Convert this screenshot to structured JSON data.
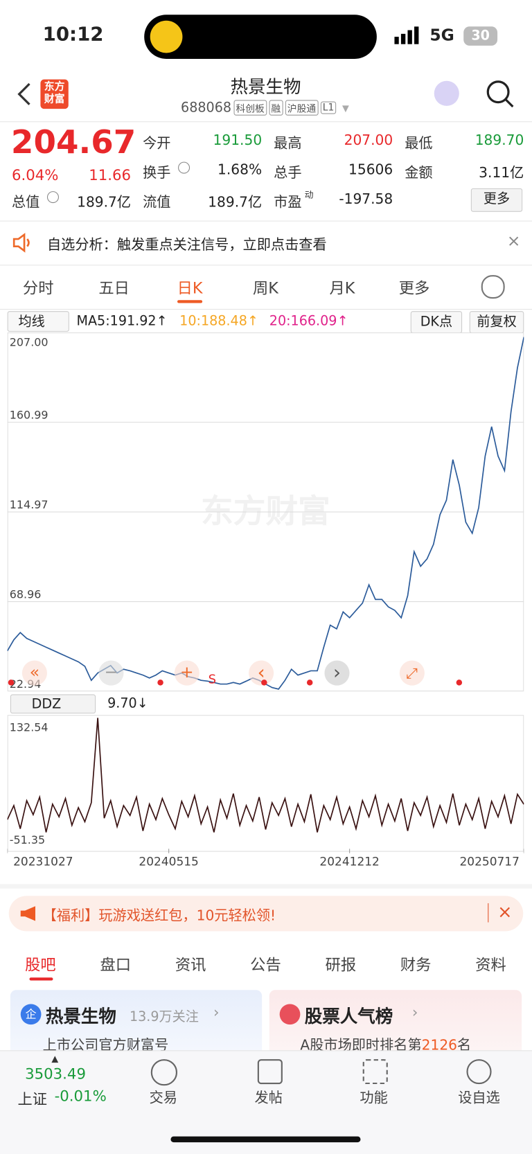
{
  "status": {
    "time": "10:12",
    "network": "5G",
    "battery": "30"
  },
  "header": {
    "logo": [
      "东方",
      "财富"
    ],
    "title": "热景生物",
    "code": "688068",
    "tags": [
      "科创板",
      "融",
      "沪股通",
      "L1"
    ]
  },
  "quote": {
    "price": "204.67",
    "change_pct": "6.04%",
    "change": "11.66",
    "open": {
      "label": "今开",
      "value": "191.50"
    },
    "high": {
      "label": "最高",
      "value": "207.00"
    },
    "low": {
      "label": "最低",
      "value": "189.70"
    },
    "turnover": {
      "label": "换手",
      "value": "1.68%"
    },
    "volume": {
      "label": "总手",
      "value": "15606"
    },
    "amount": {
      "label": "金额",
      "value": "3.11亿"
    },
    "market_cap": {
      "label": "总值",
      "value": "189.7亿"
    },
    "float_cap": {
      "label": "流值",
      "value": "189.7亿"
    },
    "pe": {
      "label": "市盈",
      "sup": "动",
      "value": "-197.58"
    },
    "more": "更多"
  },
  "notice": "自选分析：触发重点关注信号，立即点击查看",
  "period_tabs": [
    "分时",
    "五日",
    "日K",
    "周K",
    "月K",
    "更多"
  ],
  "ma_bar": {
    "selector": "均线",
    "ma5": "MA5:191.92↑",
    "ma10": "10:188.48↑",
    "ma20": "20:166.09↑",
    "dk": "DK点",
    "adjust": "前复权"
  },
  "watermark": "东方财富",
  "chart_controls": [
    "«",
    "−",
    "+",
    "‹",
    "›",
    "⤢"
  ],
  "signal_label": "S",
  "chart_data": [
    {
      "type": "line",
      "ylim": [
        22.94,
        207
      ],
      "yticks": [
        {
          "value": 207,
          "label": "207.00"
        },
        160.99,
        114.97,
        68.96,
        22.94
      ],
      "grid": true,
      "series": [
        {
          "color": "#2b5b9a",
          "values": [
            43.7,
            49.4,
            53.1,
            50.1,
            48.6,
            47.1,
            45.6,
            44.1,
            42.6,
            41.1,
            39.6,
            38.1,
            35.8,
            28.6,
            32.4,
            34.3,
            36.2,
            32.4,
            34.3,
            33.5,
            32.4,
            31.3,
            29.8,
            31.3,
            33.5,
            32.4,
            31.3,
            32.4,
            30.5,
            29.8,
            28.6,
            28.2,
            27.5,
            26.7,
            26.7,
            27.5,
            26.7,
            28.2,
            29.8,
            28.6,
            26.7,
            24.9,
            24.1,
            28.6,
            34.3,
            31.3,
            32.4,
            33.5,
            33.5,
            45.6,
            56.9,
            55.0,
            63.7,
            60.7,
            64.5,
            68.2,
            77.6,
            70.1,
            70.1,
            66.3,
            64.5,
            60.7,
            72.0,
            94.6,
            87.1,
            90.9,
            98.4,
            113.5,
            121.0,
            141.8,
            128.6,
            109.7,
            104.0,
            117.2,
            143.6,
            158.7,
            143.6,
            136.1,
            166.3,
            188.9,
            204.67
          ]
        }
      ]
    },
    {
      "type": "line",
      "indicator": "DDZ",
      "current_label": "9.70↓",
      "ylim": [
        -51.35,
        132.54
      ],
      "yticks": [
        132.54,
        -51.35
      ],
      "categories": [
        "20231027",
        null,
        null,
        null,
        null,
        null,
        null,
        null,
        null,
        null,
        null,
        null,
        null,
        null,
        null,
        null,
        null,
        null,
        null,
        null,
        null,
        null,
        null,
        null,
        null,
        "20240515",
        null,
        null,
        null,
        null,
        null,
        null,
        null,
        null,
        null,
        null,
        null,
        null,
        null,
        null,
        null,
        null,
        null,
        null,
        null,
        null,
        null,
        null,
        null,
        null,
        null,
        null,
        null,
        "20241212",
        null,
        null,
        null,
        null,
        null,
        null,
        null,
        null,
        null,
        null,
        null,
        null,
        null,
        null,
        null,
        null,
        null,
        null,
        null,
        null,
        null,
        null,
        null,
        null,
        null,
        null,
        "20250717"
      ],
      "series": [
        {
          "color": "#3a1212",
          "values": [
            -12,
            8,
            -25,
            15,
            -5,
            20,
            -30,
            10,
            -8,
            18,
            -20,
            5,
            -15,
            12,
            132.54,
            -10,
            15,
            -22,
            8,
            -6,
            20,
            -28,
            10,
            -12,
            18,
            -5,
            -25,
            14,
            -8,
            22,
            -18,
            6,
            -30,
            16,
            -10,
            25,
            -20,
            8,
            -14,
            20,
            -26,
            12,
            -6,
            18,
            -22,
            10,
            -15,
            24,
            -30,
            8,
            -12,
            20,
            -18,
            6,
            -25,
            15,
            -8,
            22,
            -20,
            10,
            -14,
            18,
            -28,
            12,
            -6,
            20,
            -22,
            8,
            -16,
            25,
            -20,
            10,
            -12,
            18,
            -25,
            14,
            -8,
            22,
            -18,
            24,
            9.7
          ]
        }
      ]
    }
  ],
  "banner": "【福利】玩游戏送红包，10元轻松领!",
  "section_tabs": [
    "股吧",
    "盘口",
    "资讯",
    "公告",
    "研报",
    "财务",
    "资料"
  ],
  "cards": [
    {
      "icon": "企",
      "title": "热景生物",
      "sub": "13.9万关注",
      "desc": "上市公司官方财富号"
    },
    {
      "title": "股票人气榜",
      "desc_pre": "A股市场即时排名第",
      "rank": "2126",
      "desc_post": "名"
    }
  ],
  "bottom_nav": {
    "index_value": "3503.49",
    "index_name": "上证",
    "index_change": "-0.01%",
    "items": [
      "交易",
      "发帖",
      "功能",
      "设自选"
    ]
  }
}
